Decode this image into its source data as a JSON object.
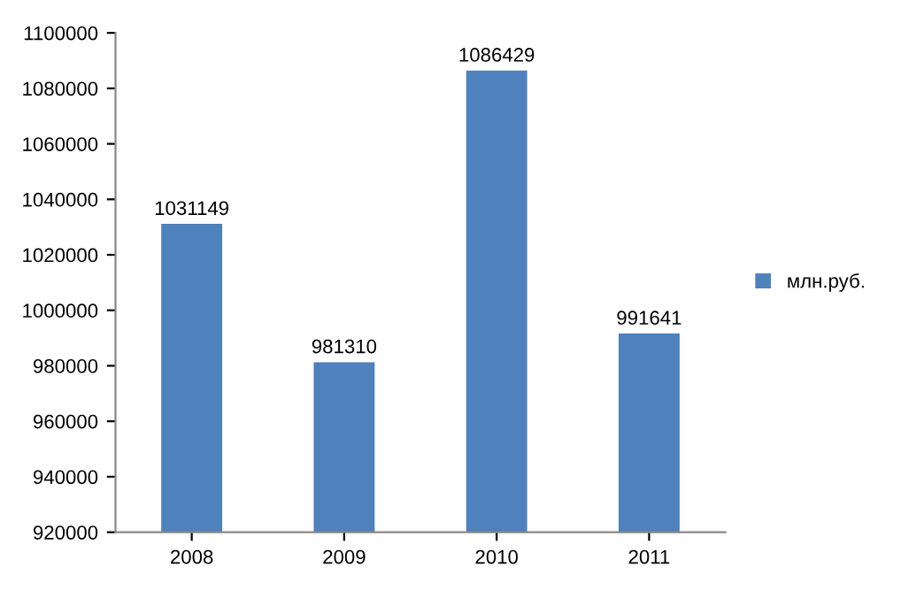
{
  "chart_data": {
    "type": "bar",
    "categories": [
      "2008",
      "2009",
      "2010",
      "2011"
    ],
    "series": [
      {
        "name": "млн.руб.",
        "color": "#4f81bd",
        "values": [
          1031149,
          981310,
          1086429,
          991641
        ]
      }
    ],
    "ylim": [
      920000,
      1100000
    ],
    "yticks": [
      920000,
      940000,
      960000,
      980000,
      1000000,
      1020000,
      1040000,
      1060000,
      1080000,
      1100000
    ],
    "data_labels": true,
    "legend": "right",
    "grid": false
  }
}
